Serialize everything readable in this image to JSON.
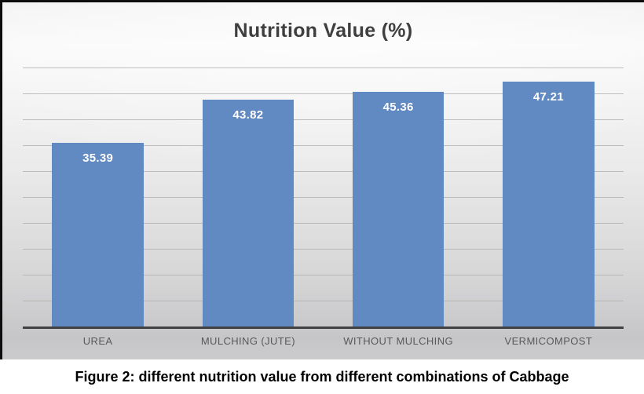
{
  "figure": {
    "caption": "Figure 2: different nutrition value from different combinations of Cabbage"
  },
  "chart_data": {
    "type": "bar",
    "title": "Nutrition Value (%)",
    "categories": [
      "UREA",
      "MULCHING (JUTE)",
      "WITHOUT MULCHING",
      "VERMICOMPOST"
    ],
    "values": [
      35.39,
      43.82,
      45.36,
      47.21
    ],
    "data_labels": [
      "35.39",
      "43.82",
      "45.36",
      "47.21"
    ],
    "data_label_position": "inside-top",
    "xlabel": "",
    "ylabel": "",
    "ylim": [
      0,
      50
    ],
    "gridline_interval": 5,
    "grid": true,
    "legend": "none",
    "y_axis_tick_labels_visible": false,
    "colors": {
      "bar": "#6189C2",
      "gridline": "#ACACAC",
      "axis_line": "#404040",
      "title_text": "#3F3F3F",
      "category_text": "#595959",
      "data_label_text": "#FFFFFF",
      "caption_text": "#000000",
      "frame_border": "#0D0D0D"
    }
  }
}
